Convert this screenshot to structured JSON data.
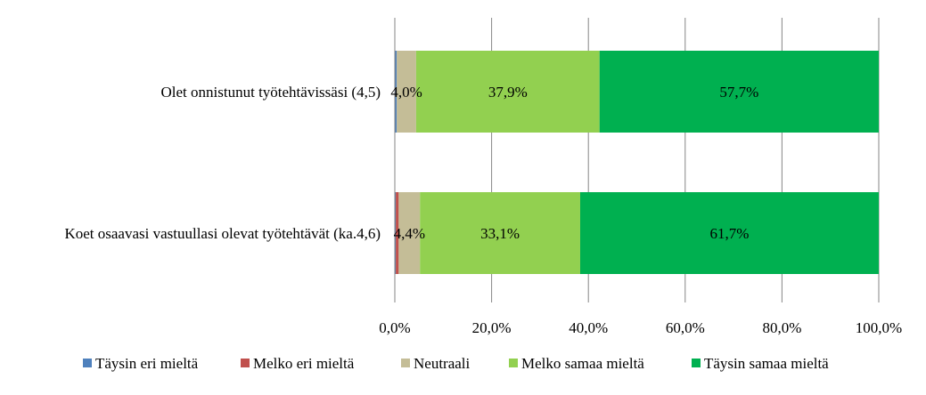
{
  "chart_data": {
    "type": "bar",
    "orientation": "horizontal",
    "stacked": "percent",
    "categories": [
      "Olet onnistunut työtehtävissäsi (4,5)",
      "Koet osaavasi vastuullasi olevat työtehtävät (ka.4,6)"
    ],
    "series": [
      {
        "name": "Täysin eri mieltä",
        "color": "#4f81bd",
        "values": [
          0.4,
          0.2
        ]
      },
      {
        "name": "Melko eri mieltä",
        "color": "#c0504d",
        "values": [
          0.0,
          0.6
        ]
      },
      {
        "name": "Neutraali",
        "color": "#c4bd97",
        "values": [
          4.0,
          4.4
        ]
      },
      {
        "name": "Melko samaa mieltä",
        "color": "#92d050",
        "values": [
          37.9,
          33.1
        ]
      },
      {
        "name": "Täysin samaa mieltä",
        "color": "#00b050",
        "values": [
          57.7,
          61.7
        ]
      }
    ],
    "data_labels": [
      [
        "",
        "",
        "4,0%",
        "37,9%",
        "57,7%"
      ],
      [
        "",
        "",
        "4,4%",
        "33,1%",
        "61,7%"
      ]
    ],
    "x_ticks": [
      "0,0%",
      "20,0%",
      "40,0%",
      "60,0%",
      "80,0%",
      "100,0%"
    ],
    "xlim": [
      0,
      100
    ],
    "grid": true,
    "legend_position": "bottom",
    "title": "",
    "xlabel": "",
    "ylabel": ""
  }
}
